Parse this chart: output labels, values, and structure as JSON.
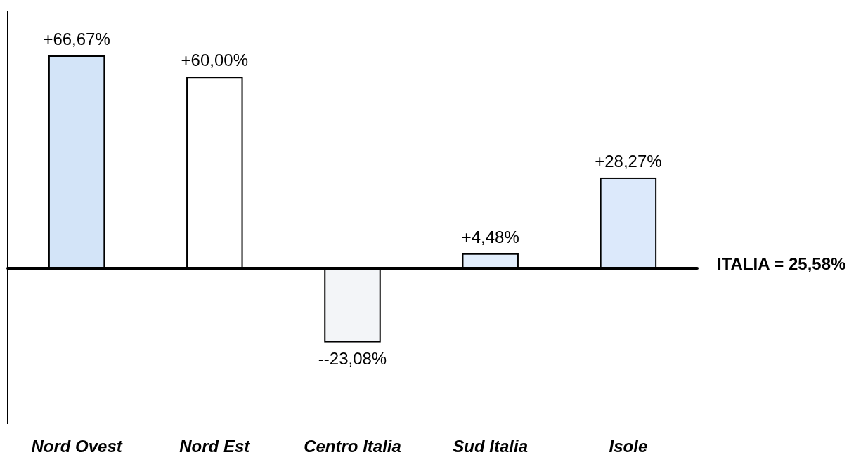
{
  "chart_data": {
    "type": "bar",
    "categories": [
      "Nord Ovest",
      "Nord Est",
      "Centro Italia",
      "Sud Italia",
      "Isole"
    ],
    "values": [
      66.67,
      60.0,
      -23.08,
      4.48,
      28.27
    ],
    "colors": [
      "#d3e4f8",
      "#ffffff",
      "#f3f5f8",
      "#e2eefc",
      "#dce9fb"
    ],
    "value_labels": [
      "+66,67%",
      "+60,00%",
      "--23,08%",
      "+4,48%",
      "+28,27%"
    ],
    "annotations": [
      "ITALIA = 25,58%"
    ]
  }
}
